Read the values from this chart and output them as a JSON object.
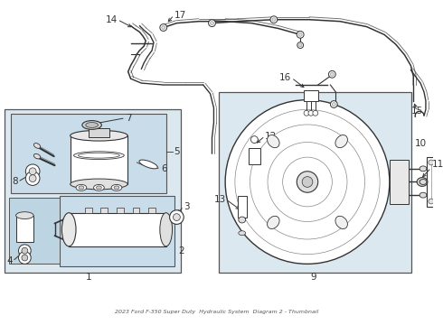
{
  "bg_color": "#ffffff",
  "box_bg": "#dce8f0",
  "line_color": "#333333",
  "label_fs": 7.5,
  "arrow_fs": 6,
  "fig_w": 4.9,
  "fig_h": 3.6,
  "dpi": 100
}
